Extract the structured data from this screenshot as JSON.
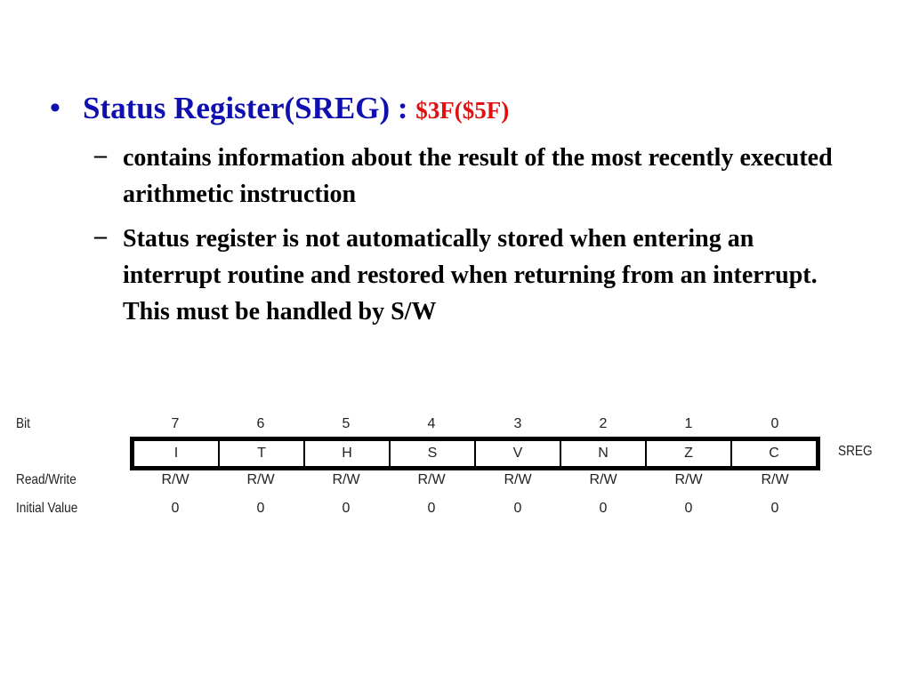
{
  "title": {
    "bullet": "•",
    "text": "Status Register(SREG) : ",
    "address": "$3F($5F)"
  },
  "sub_bullets": [
    {
      "dash": "–",
      "text": "contains information about the result of the most recently executed arithmetic instruction"
    },
    {
      "dash": "–",
      "text": "Status register is not automatically stored when entering an interrupt routine and restored when returning from an interrupt. This must be handled by S/W"
    }
  ],
  "register": {
    "name": "SREG",
    "bit_label": "Bit",
    "rw_label": "Read/Write",
    "init_label": "Initial Value",
    "bits": [
      "7",
      "6",
      "5",
      "4",
      "3",
      "2",
      "1",
      "0"
    ],
    "flags": [
      "I",
      "T",
      "H",
      "S",
      "V",
      "N",
      "Z",
      "C"
    ],
    "rw": [
      "R/W",
      "R/W",
      "R/W",
      "R/W",
      "R/W",
      "R/W",
      "R/W",
      "R/W"
    ],
    "initial": [
      "0",
      "0",
      "0",
      "0",
      "0",
      "0",
      "0",
      "0"
    ]
  },
  "colors": {
    "title": "#1010b0",
    "address": "#e01010"
  }
}
